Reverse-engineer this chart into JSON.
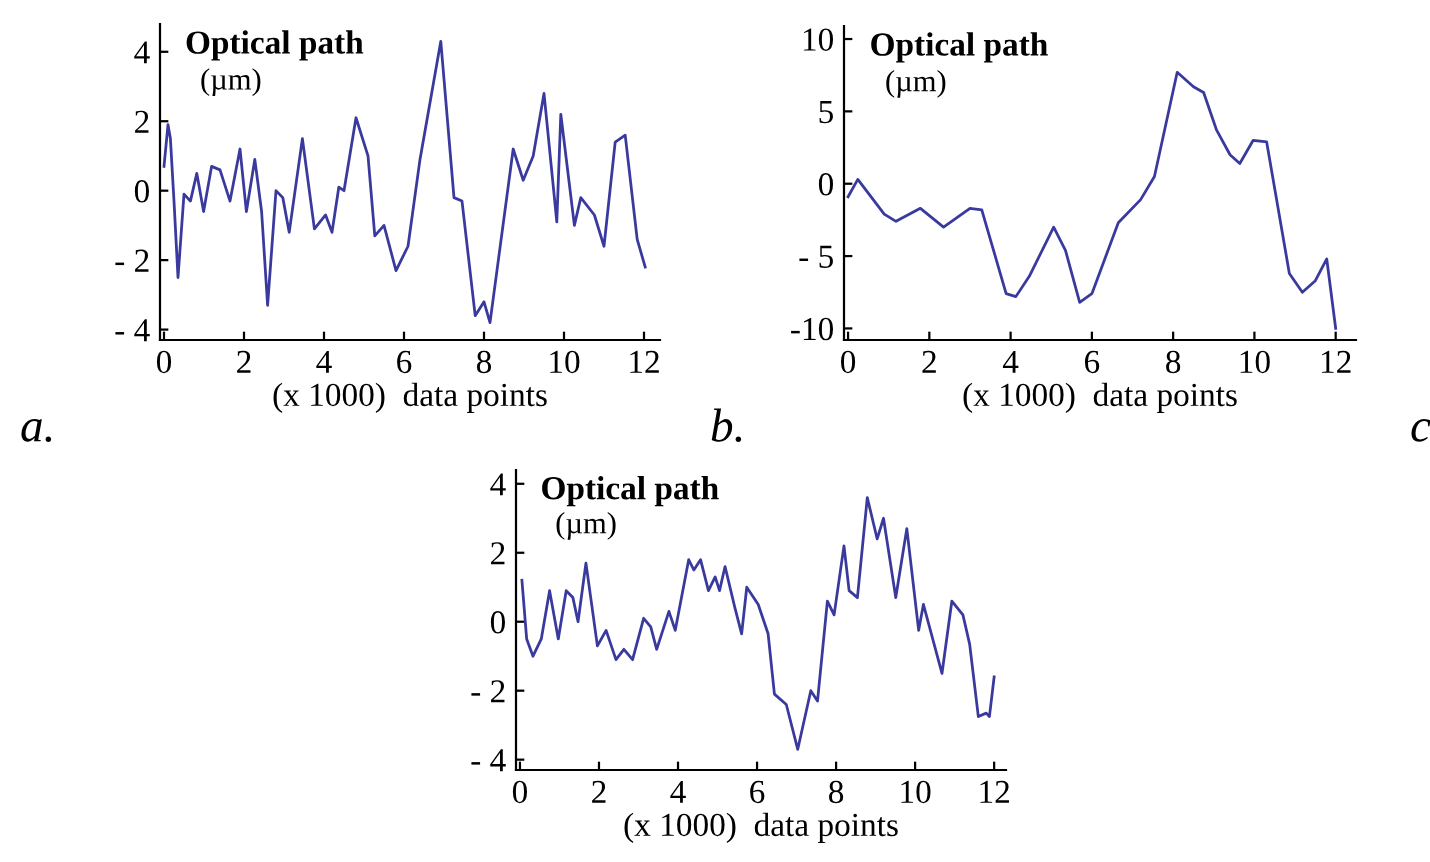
{
  "chart_data": [
    {
      "type": "line",
      "ylabel": "Optical path\n(µm)",
      "xlabel": "(x 1000)  data points",
      "annotations": [
        "a."
      ],
      "x": [
        0,
        0.1,
        0.16,
        0.25,
        0.35,
        0.5,
        0.66,
        0.82,
        0.99,
        1.19,
        1.4,
        1.65,
        1.9,
        2.06,
        2.27,
        2.44,
        2.59,
        2.8,
        2.97,
        3.13,
        3.46,
        3.76,
        4.04,
        4.2,
        4.37,
        4.5,
        4.8,
        5.1,
        5.27,
        5.5,
        5.8,
        6.1,
        6.4,
        6.92,
        7.25,
        7.45,
        7.78,
        8.0,
        8.15,
        8.73,
        8.98,
        9.23,
        9.5,
        9.82,
        9.92,
        10.26,
        10.42,
        10.76,
        11.0,
        11.28,
        11.53,
        11.83,
        12.03
      ],
      "series": [
        {
          "color": "#3a3a9e",
          "values": [
            0.7,
            1.9,
            1.5,
            -0.3,
            -2.5,
            -0.1,
            -0.3,
            0.5,
            -0.6,
            0.7,
            0.6,
            -0.3,
            1.2,
            -0.6,
            0.9,
            -0.6,
            -3.3,
            0,
            -0.2,
            -1.2,
            1.5,
            -1.1,
            -0.7,
            -1.2,
            0.1,
            0,
            2.1,
            1.0,
            -1.3,
            -1.0,
            -2.3,
            -1.6,
            0.9,
            4.3,
            -0.2,
            -0.3,
            -3.6,
            -3.2,
            -3.8,
            1.2,
            0.3,
            1.0,
            2.8,
            -0.9,
            2.2,
            -1.0,
            -0.2,
            -0.7,
            -1.6,
            1.4,
            1.6,
            -1.4,
            -2.2
          ]
        }
      ],
      "xlim": [
        -0.1,
        12.4
      ],
      "ylim": [
        -4.3,
        4.8
      ],
      "xticks": [
        0,
        2,
        4,
        6,
        8,
        10,
        12
      ],
      "yticks": [
        {
          "value": -4,
          "label": "- 4"
        },
        {
          "value": -2,
          "label": "- 2"
        },
        0,
        2,
        4
      ],
      "grid": false,
      "legend": false
    },
    {
      "type": "line",
      "ylabel": "Optical path\n(µm)",
      "xlabel": "(x 1000)  data points",
      "annotations": [
        "b."
      ],
      "x": [
        0,
        0.24,
        0.89,
        1.18,
        1.78,
        2.35,
        3.0,
        3.29,
        3.89,
        4.13,
        4.46,
        5.06,
        5.35,
        5.7,
        6.0,
        6.65,
        7.2,
        7.54,
        8.1,
        8.5,
        8.75,
        9.07,
        9.4,
        9.64,
        9.97,
        10.3,
        10.86,
        11.18,
        11.5,
        11.78,
        12.0
      ],
      "series": [
        {
          "color": "#3a3a9e",
          "values": [
            -0.9,
            0.3,
            -2.1,
            -2.6,
            -1.7,
            -3.0,
            -1.7,
            -1.8,
            -7.6,
            -7.8,
            -6.4,
            -3.0,
            -4.6,
            -8.2,
            -7.6,
            -2.7,
            -1.1,
            0.5,
            7.7,
            6.7,
            6.3,
            3.7,
            2.0,
            1.4,
            3.0,
            2.9,
            -6.2,
            -7.5,
            -6.7,
            -5.2,
            -10
          ]
        }
      ],
      "xlim": [
        -0.1,
        12.5
      ],
      "ylim": [
        -10.8,
        10.9
      ],
      "xticks": [
        0,
        2,
        4,
        6,
        8,
        10,
        12
      ],
      "yticks": [
        {
          "value": -10,
          "label": "-10"
        },
        {
          "value": -5,
          "label": "- 5"
        },
        0,
        5,
        10
      ],
      "grid": false,
      "legend": false
    },
    {
      "type": "line",
      "ylabel": "Optical path\n(µm)",
      "xlabel": "(x 1000)  data points",
      "annotations": [
        "c"
      ],
      "x": [
        0.05,
        0.17,
        0.33,
        0.54,
        0.75,
        0.97,
        1.17,
        1.34,
        1.47,
        1.67,
        1.96,
        2.18,
        2.43,
        2.63,
        2.85,
        3.13,
        3.31,
        3.46,
        3.77,
        3.93,
        4.27,
        4.4,
        4.57,
        4.77,
        4.94,
        5.05,
        5.19,
        5.44,
        5.61,
        5.74,
        6.03,
        6.28,
        6.44,
        6.74,
        7.03,
        7.36,
        7.53,
        7.78,
        7.95,
        8.2,
        8.33,
        8.54,
        8.79,
        9.04,
        9.2,
        9.51,
        9.79,
        10.09,
        10.21,
        10.68,
        10.93,
        11.21,
        11.38,
        11.6,
        11.8,
        11.88,
        12.0
      ],
      "series": [
        {
          "color": "#3a3a9e",
          "values": [
            1.2,
            -0.5,
            -1.0,
            -0.5,
            0.9,
            -0.5,
            0.9,
            0.7,
            0.0,
            1.7,
            -0.7,
            -0.25,
            -1.1,
            -0.8,
            -1.1,
            0.1,
            -0.15,
            -0.8,
            0.3,
            -0.25,
            1.8,
            1.5,
            1.8,
            0.9,
            1.3,
            0.9,
            1.6,
            0.4,
            -0.35,
            1.0,
            0.5,
            -0.35,
            -2.1,
            -2.4,
            -3.7,
            -2.0,
            -2.3,
            0.6,
            0.2,
            2.2,
            0.9,
            0.7,
            3.6,
            2.4,
            3.0,
            0.7,
            2.7,
            -0.25,
            0.5,
            -1.5,
            0.6,
            0.2,
            -0.65,
            -2.75,
            -2.65,
            -2.75,
            -1.6
          ]
        }
      ],
      "xlim": [
        -0.1,
        12.3
      ],
      "ylim": [
        -4.3,
        4.4
      ],
      "xticks": [
        0,
        2,
        4,
        6,
        8,
        10,
        12
      ],
      "yticks": [
        {
          "value": -4,
          "label": "- 4"
        },
        {
          "value": -2,
          "label": "- 2"
        },
        0,
        2,
        4
      ],
      "grid": false,
      "legend": false
    }
  ]
}
